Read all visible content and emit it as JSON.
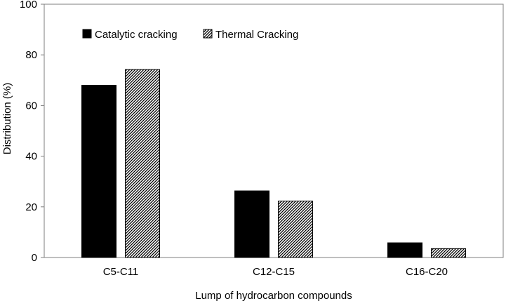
{
  "chart_data": {
    "type": "bar",
    "title": "",
    "xlabel": "Lump of hydrocarbon compounds",
    "ylabel": "Distribution (%)",
    "ylim": [
      0,
      100
    ],
    "yticks": [
      0,
      20,
      40,
      60,
      80,
      100
    ],
    "categories": [
      "C5-C11",
      "C12-C15",
      "C16-C20"
    ],
    "series": [
      {
        "name": "Catalytic cracking",
        "values": [
          68,
          26.3,
          5.8
        ],
        "pattern": "solid",
        "color": "#000000"
      },
      {
        "name": "Thermal Cracking",
        "values": [
          74.2,
          22.3,
          3.5
        ],
        "pattern": "diagonal-hatch",
        "color": "#000000"
      }
    ],
    "grid": false,
    "legend_placement": "top-left"
  }
}
